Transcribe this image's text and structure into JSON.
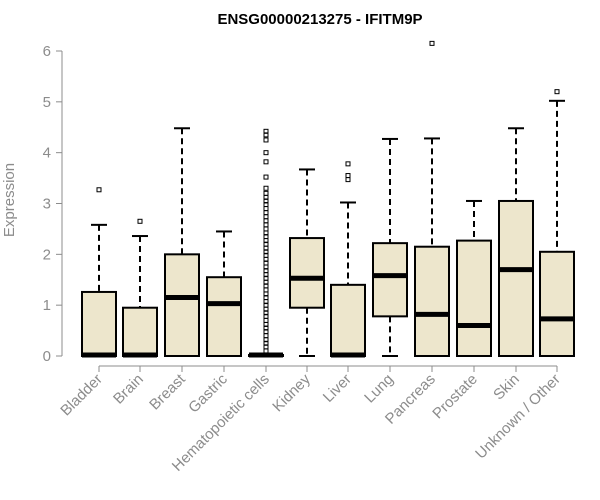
{
  "chart_data": {
    "type": "boxplot",
    "title": "ENSG00000213275 - IFITM9P",
    "xlabel": "",
    "ylabel": "Expression",
    "ylim": [
      0,
      6
    ],
    "yticks": [
      "0",
      "1",
      "2",
      "3",
      "4",
      "5",
      "6"
    ],
    "box_color": "#ede6cc",
    "categories": [
      "Bladder",
      "Brain",
      "Breast",
      "Gastric",
      "Hematopoietic cells",
      "Kidney",
      "Liver",
      "Lung",
      "Pancreas",
      "Prostate",
      "Skin",
      "Unknown / Other"
    ],
    "boxes": [
      {
        "name": "Bladder",
        "min": 0,
        "q1": 0,
        "median": 0.02,
        "q3": 1.26,
        "max": 2.58,
        "outliers": [
          3.27
        ]
      },
      {
        "name": "Brain",
        "min": 0,
        "q1": 0,
        "median": 0.02,
        "q3": 0.95,
        "max": 2.36,
        "outliers": [
          2.65
        ]
      },
      {
        "name": "Breast",
        "min": 0,
        "q1": 0,
        "median": 1.15,
        "q3": 2.0,
        "max": 4.48,
        "outliers": []
      },
      {
        "name": "Gastric",
        "min": 0,
        "q1": 0,
        "median": 1.03,
        "q3": 1.55,
        "max": 2.45,
        "outliers": []
      },
      {
        "name": "Hematopoietic cells",
        "min": 0,
        "q1": 0,
        "median": 0.02,
        "q3": 0.02,
        "max": 0.02,
        "outliers": [
          4.42,
          4.35,
          4.25,
          4.0,
          3.82,
          3.52,
          3.3,
          3.2,
          3.12,
          3.05,
          2.98,
          2.9,
          2.82,
          2.74,
          2.66,
          2.58,
          2.5,
          2.42,
          2.35,
          2.27,
          2.2,
          2.12,
          2.05,
          1.98,
          1.9,
          1.83,
          1.75,
          1.68,
          1.6,
          1.53,
          1.45,
          1.38,
          1.3,
          1.22,
          1.15,
          1.07,
          1.0,
          0.92,
          0.85,
          0.78,
          0.7,
          0.62,
          0.55,
          0.48,
          0.4,
          0.32,
          0.25,
          0.18,
          0.1
        ]
      },
      {
        "name": "Kidney",
        "min": 0,
        "q1": 0.95,
        "median": 1.53,
        "q3": 2.32,
        "max": 3.67,
        "outliers": []
      },
      {
        "name": "Liver",
        "min": 0,
        "q1": 0,
        "median": 0.02,
        "q3": 1.4,
        "max": 3.02,
        "outliers": [
          3.47,
          3.55,
          3.78
        ]
      },
      {
        "name": "Lung",
        "min": 0,
        "q1": 0.78,
        "median": 1.58,
        "q3": 2.22,
        "max": 4.27,
        "outliers": []
      },
      {
        "name": "Pancreas",
        "min": 0,
        "q1": 0,
        "median": 0.82,
        "q3": 2.15,
        "max": 4.28,
        "outliers": [
          6.15
        ]
      },
      {
        "name": "Prostate",
        "min": 0,
        "q1": 0,
        "median": 0.6,
        "q3": 2.27,
        "max": 3.05,
        "outliers": []
      },
      {
        "name": "Skin",
        "min": 0,
        "q1": 0,
        "median": 1.7,
        "q3": 3.05,
        "max": 4.48,
        "outliers": []
      },
      {
        "name": "Unknown / Other",
        "min": 0,
        "q1": 0,
        "median": 0.73,
        "q3": 2.05,
        "max": 5.02,
        "outliers": [
          5.2
        ]
      }
    ]
  }
}
